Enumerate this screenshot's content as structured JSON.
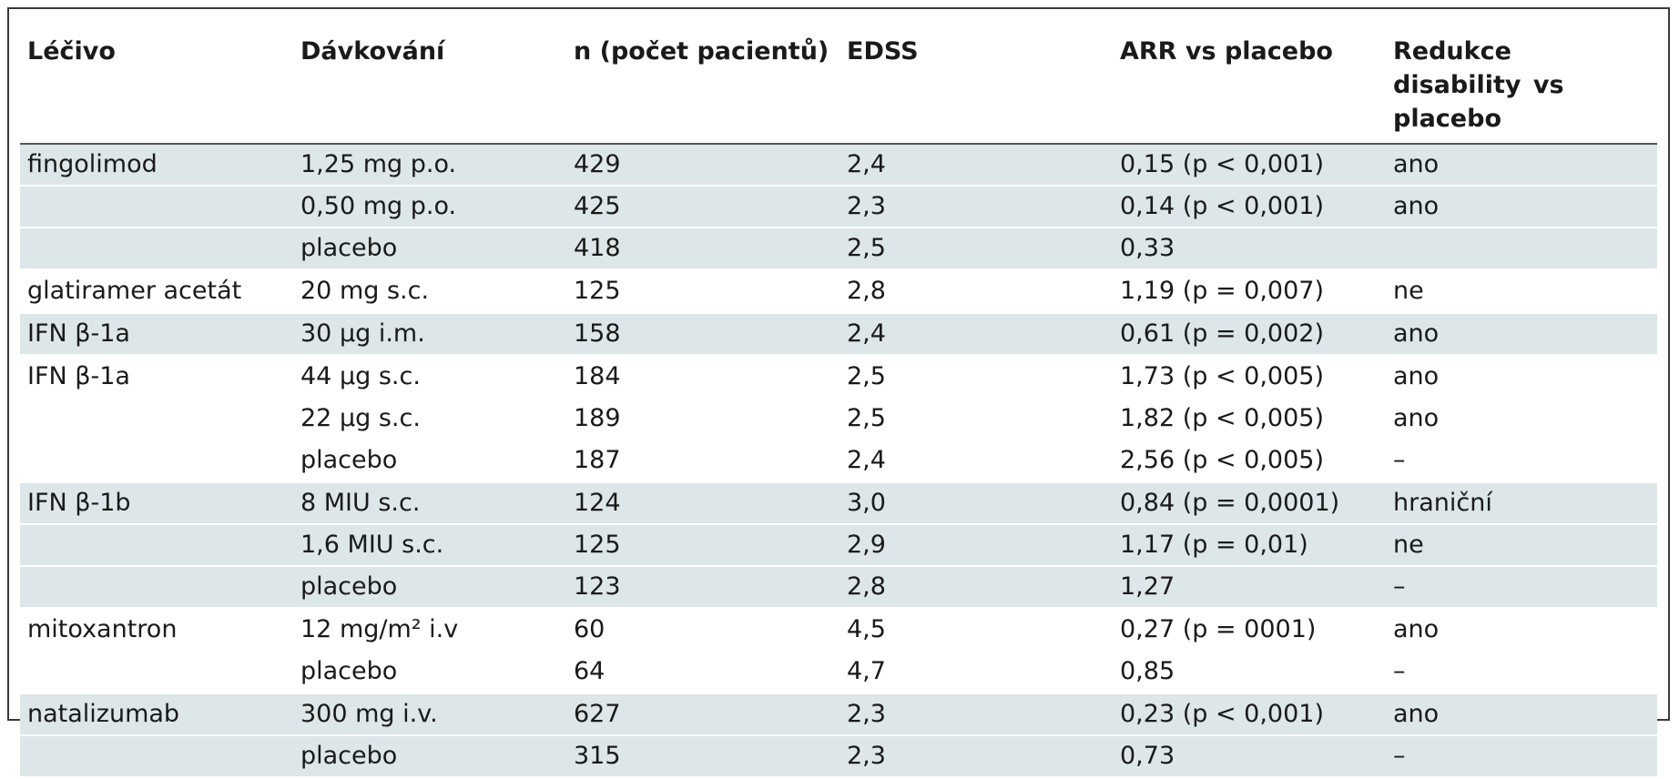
{
  "headers": [
    "Léčivo",
    "Dávkování",
    "n (počet pacientů)",
    "EDSS",
    "ARR vs placebo",
    "Redukce  disability vs placebo"
  ],
  "groups": [
    {
      "shade": true,
      "rows": [
        [
          "fingolimod",
          "1,25 mg p.o.",
          "429",
          "2,4",
          "0,15 (p < 0,001)",
          "ano"
        ],
        [
          "",
          "0,50 mg p.o.",
          "425",
          "2,3",
          "0,14 (p < 0,001)",
          "ano"
        ],
        [
          "",
          "placebo",
          "418",
          "2,5",
          "0,33",
          ""
        ]
      ]
    },
    {
      "shade": false,
      "rows": [
        [
          "glatiramer acetát",
          "20 mg s.c.",
          "125",
          "2,8",
          "1,19 (p = 0,007)",
          "ne"
        ]
      ]
    },
    {
      "shade": true,
      "rows": [
        [
          "IFN β-1a",
          "30 µg i.m.",
          "158",
          "2,4",
          "0,61 (p = 0,002)",
          "ano"
        ]
      ]
    },
    {
      "shade": false,
      "rows": [
        [
          "IFN β-1a",
          "44 µg s.c.",
          "184",
          "2,5",
          "1,73 (p < 0,005)",
          "ano"
        ],
        [
          "",
          "22 µg s.c.",
          "189",
          "2,5",
          "1,82 (p < 0,005)",
          "ano"
        ],
        [
          "",
          "placebo",
          "187",
          "2,4",
          "2,56 (p < 0,005)",
          "–"
        ]
      ]
    },
    {
      "shade": true,
      "rows": [
        [
          "IFN β-1b",
          "8 MIU s.c.",
          "124",
          "3,0",
          "0,84 (p = 0,0001)",
          "hraniční"
        ],
        [
          "",
          "1,6 MIU s.c.",
          "125",
          "2,9",
          "1,17 (p = 0,01)",
          "ne"
        ],
        [
          "",
          "placebo",
          "123",
          "2,8",
          "1,27",
          "–"
        ]
      ]
    },
    {
      "shade": false,
      "rows": [
        [
          "mitoxantron",
          "12 mg/m² i.v",
          "60",
          "4,5",
          "0,27 (p = 0001)",
          "ano"
        ],
        [
          "",
          "placebo",
          "64",
          "4,7",
          "0,85",
          "–"
        ]
      ]
    },
    {
      "shade": true,
      "rows": [
        [
          "natalizumab",
          "300 mg i.v.",
          "627",
          "2,3",
          "0,23 (p < 0,001)",
          "ano"
        ],
        [
          "",
          "placebo",
          "315",
          "2,3",
          "0,73",
          "–"
        ]
      ]
    }
  ]
}
